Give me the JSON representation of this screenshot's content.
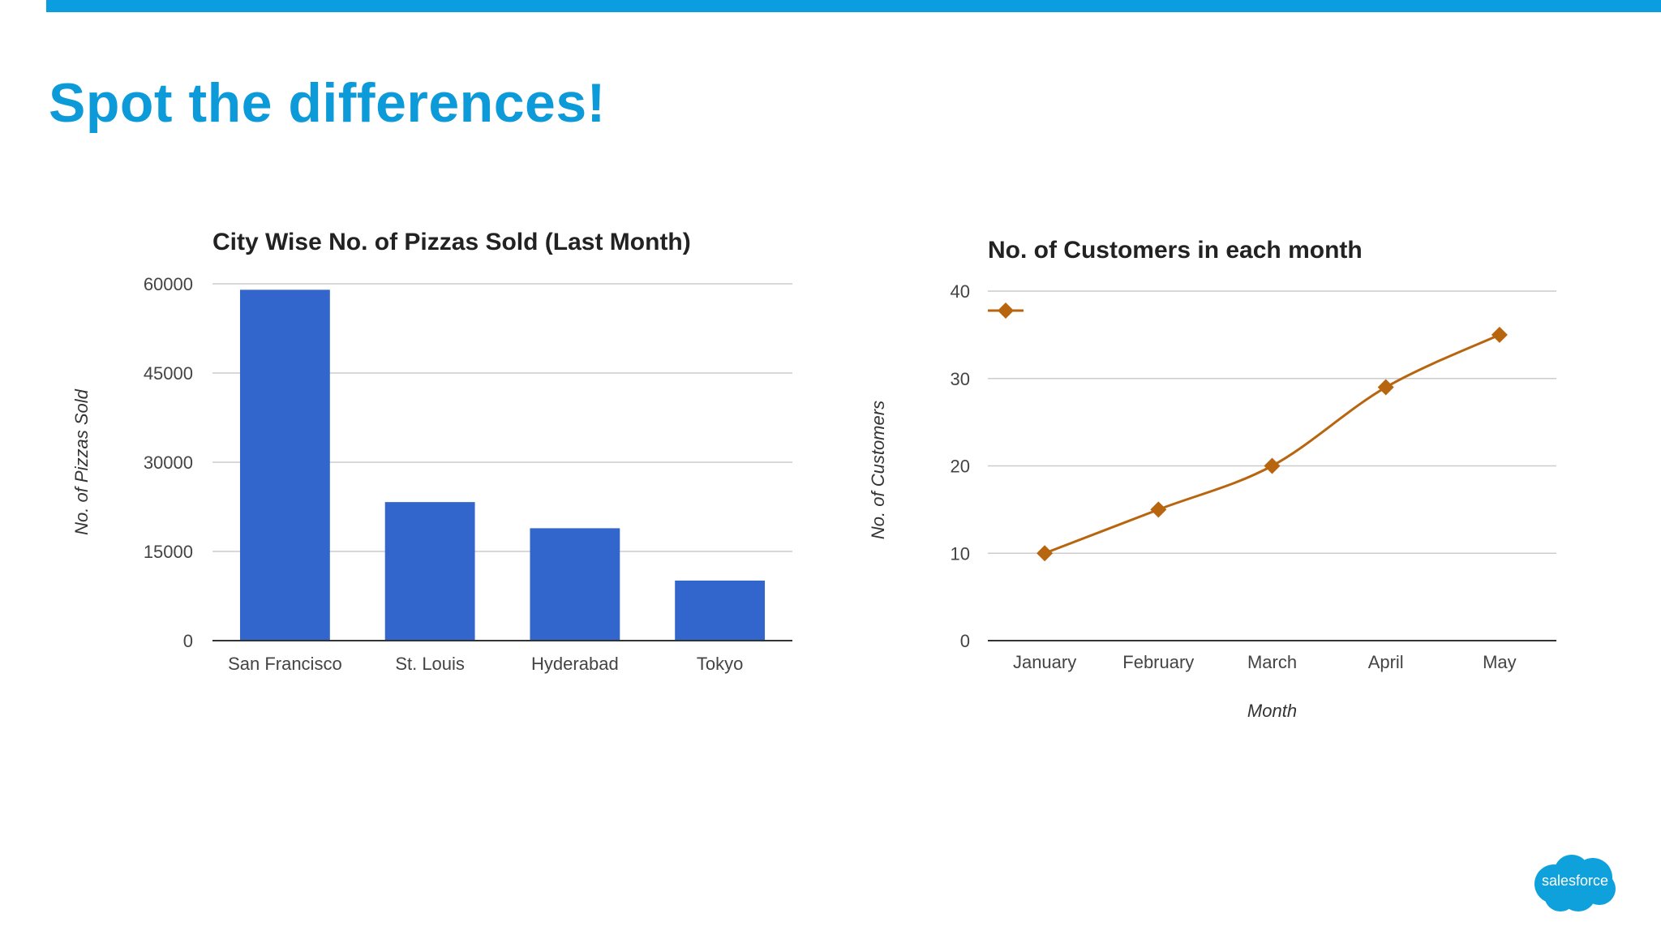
{
  "slide": {
    "title": "Spot the differences!",
    "accent_color": "#0a9ee0",
    "logo_text": "salesforce"
  },
  "chart_data": [
    {
      "type": "bar",
      "title": "City Wise No. of Pizzas Sold (Last Month)",
      "categories": [
        "San Francisco",
        "St. Louis",
        "Hyderabad",
        "Tokyo"
      ],
      "values": [
        59000,
        23300,
        18900,
        10100
      ],
      "ylabel": "No. of Pizzas Sold",
      "xlabel": "",
      "ylim": [
        0,
        60000
      ],
      "yticks": [
        0,
        15000,
        30000,
        45000,
        60000
      ],
      "color": "#3366cc",
      "grid": true
    },
    {
      "type": "line",
      "title": "No. of Customers in each month",
      "categories": [
        "January",
        "February",
        "March",
        "April",
        "May"
      ],
      "values": [
        10,
        15,
        20,
        29,
        35
      ],
      "ylabel": "No. of Customers",
      "xlabel": "Month",
      "ylim": [
        0,
        40
      ],
      "yticks": [
        0,
        10,
        20,
        30,
        40
      ],
      "color": "#b8650f",
      "marker": "diamond",
      "legend": "top-left",
      "grid": true
    }
  ]
}
